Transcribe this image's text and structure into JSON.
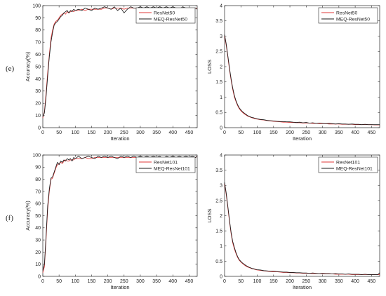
{
  "row_labels": [
    "(e)",
    "(f)"
  ],
  "chart_data": [
    {
      "type": "line",
      "xlabel": "Iteration",
      "ylabel": "Accuracy(%)",
      "xlim": [
        0,
        475
      ],
      "ylim": [
        0,
        100
      ],
      "xticks": [
        0,
        50,
        100,
        150,
        200,
        250,
        300,
        350,
        400,
        450
      ],
      "yticks": [
        0,
        10,
        20,
        30,
        40,
        50,
        60,
        70,
        80,
        90,
        100
      ],
      "grid": false,
      "legend": "top-right",
      "series": [
        {
          "name": "ResNet50",
          "color": "#e23a3a",
          "x": [
            0,
            5,
            10,
            15,
            20,
            25,
            30,
            35,
            40,
            45,
            50,
            55,
            60,
            65,
            70,
            75,
            80,
            85,
            90,
            95,
            100,
            110,
            120,
            130,
            140,
            150,
            160,
            170,
            180,
            190,
            200,
            210,
            220,
            230,
            240,
            250,
            260,
            270,
            280,
            290,
            300,
            310,
            320,
            330,
            340,
            350,
            360,
            370,
            380,
            390,
            400,
            410,
            420,
            430,
            440,
            450,
            460,
            470,
            475
          ],
          "y": [
            8,
            13,
            28,
            45,
            60,
            73,
            80,
            85,
            87,
            88,
            90,
            92,
            93,
            94,
            93,
            95,
            94,
            95,
            96,
            95,
            96,
            96,
            97,
            96,
            97,
            97,
            97,
            97,
            97,
            98,
            98,
            97,
            98,
            98,
            98,
            97,
            98,
            98,
            98,
            98,
            98,
            97,
            98,
            98,
            98,
            98,
            98,
            98,
            98,
            98,
            98,
            98,
            98,
            98,
            98,
            98,
            98,
            98,
            98
          ]
        },
        {
          "name": "MEQ-ResNet50",
          "color": "#1a1a1a",
          "x": [
            0,
            5,
            10,
            15,
            20,
            25,
            30,
            35,
            40,
            45,
            50,
            55,
            60,
            65,
            70,
            75,
            80,
            85,
            90,
            95,
            100,
            110,
            120,
            130,
            140,
            150,
            160,
            170,
            180,
            190,
            200,
            210,
            220,
            230,
            240,
            250,
            260,
            270,
            280,
            290,
            300,
            310,
            320,
            330,
            340,
            350,
            360,
            370,
            380,
            390,
            400,
            410,
            420,
            430,
            440,
            450,
            460,
            470,
            475
          ],
          "y": [
            9,
            12,
            25,
            42,
            58,
            70,
            78,
            84,
            86,
            87,
            89,
            91,
            92,
            94,
            95,
            96,
            94,
            96,
            95,
            97,
            96,
            97,
            96,
            98,
            97,
            96,
            98,
            97,
            98,
            99,
            98,
            97,
            99,
            96,
            98,
            94,
            97,
            99,
            98,
            98,
            99,
            98,
            99,
            98,
            99,
            98,
            99,
            98,
            99,
            98,
            99,
            98,
            97,
            99,
            98,
            98,
            98,
            98,
            97
          ]
        }
      ]
    },
    {
      "type": "line",
      "xlabel": "Iteration",
      "ylabel": "LOSS",
      "xlim": [
        0,
        475
      ],
      "ylim": [
        0,
        4
      ],
      "xticks": [
        0,
        50,
        100,
        150,
        200,
        250,
        300,
        350,
        400,
        450
      ],
      "yticks": [
        0,
        0.5,
        1,
        1.5,
        2,
        2.5,
        3,
        3.5,
        4
      ],
      "grid": false,
      "legend": "top-right",
      "series": [
        {
          "name": "ResNet50",
          "color": "#e23a3a",
          "x": [
            0,
            5,
            10,
            15,
            20,
            25,
            30,
            35,
            40,
            45,
            50,
            55,
            60,
            65,
            70,
            75,
            80,
            85,
            90,
            95,
            100,
            110,
            120,
            130,
            140,
            150,
            160,
            170,
            180,
            190,
            200,
            210,
            220,
            230,
            240,
            250,
            260,
            270,
            280,
            290,
            300,
            310,
            320,
            330,
            340,
            350,
            360,
            370,
            380,
            390,
            400,
            410,
            420,
            430,
            440,
            450,
            460,
            470,
            475
          ],
          "y": [
            3.0,
            2.7,
            2.3,
            1.9,
            1.55,
            1.25,
            1.0,
            0.85,
            0.72,
            0.62,
            0.55,
            0.5,
            0.45,
            0.42,
            0.38,
            0.36,
            0.34,
            0.32,
            0.3,
            0.29,
            0.28,
            0.26,
            0.25,
            0.23,
            0.22,
            0.21,
            0.2,
            0.19,
            0.18,
            0.18,
            0.17,
            0.17,
            0.16,
            0.16,
            0.15,
            0.15,
            0.15,
            0.14,
            0.14,
            0.13,
            0.13,
            0.13,
            0.12,
            0.12,
            0.12,
            0.12,
            0.11,
            0.11,
            0.11,
            0.11,
            0.1,
            0.1,
            0.1,
            0.1,
            0.1,
            0.1,
            0.09,
            0.09,
            0.09
          ]
        },
        {
          "name": "MEQ-ResNet50",
          "color": "#1a1a1a",
          "x": [
            0,
            5,
            10,
            15,
            20,
            25,
            30,
            35,
            40,
            45,
            50,
            55,
            60,
            65,
            70,
            75,
            80,
            85,
            90,
            95,
            100,
            110,
            120,
            130,
            140,
            150,
            160,
            170,
            180,
            190,
            200,
            210,
            220,
            230,
            240,
            250,
            260,
            270,
            280,
            290,
            300,
            310,
            320,
            330,
            340,
            350,
            360,
            370,
            380,
            390,
            400,
            410,
            420,
            430,
            440,
            450,
            460,
            470,
            475
          ],
          "y": [
            3.05,
            2.75,
            2.35,
            1.95,
            1.6,
            1.3,
            1.05,
            0.88,
            0.75,
            0.65,
            0.58,
            0.52,
            0.48,
            0.44,
            0.4,
            0.37,
            0.35,
            0.33,
            0.32,
            0.3,
            0.29,
            0.27,
            0.26,
            0.24,
            0.23,
            0.22,
            0.21,
            0.2,
            0.2,
            0.19,
            0.19,
            0.18,
            0.17,
            0.18,
            0.16,
            0.17,
            0.15,
            0.16,
            0.14,
            0.15,
            0.14,
            0.13,
            0.14,
            0.13,
            0.12,
            0.13,
            0.12,
            0.12,
            0.11,
            0.12,
            0.11,
            0.11,
            0.1,
            0.11,
            0.1,
            0.1,
            0.1,
            0.1,
            0.1
          ]
        }
      ]
    },
    {
      "type": "line",
      "xlabel": "Iteration",
      "ylabel": "Accuracy(%)",
      "xlim": [
        0,
        475
      ],
      "ylim": [
        0,
        100
      ],
      "xticks": [
        0,
        50,
        100,
        150,
        200,
        250,
        300,
        350,
        400,
        450
      ],
      "yticks": [
        0,
        10,
        20,
        30,
        40,
        50,
        60,
        70,
        80,
        90,
        100
      ],
      "grid": false,
      "legend": "top-right",
      "series": [
        {
          "name": "ResNet101",
          "color": "#e23a3a",
          "x": [
            0,
            5,
            10,
            15,
            20,
            25,
            30,
            35,
            40,
            45,
            50,
            55,
            60,
            65,
            70,
            75,
            80,
            85,
            90,
            95,
            100,
            110,
            120,
            130,
            140,
            150,
            160,
            170,
            180,
            190,
            200,
            210,
            220,
            230,
            240,
            250,
            260,
            270,
            280,
            290,
            300,
            310,
            320,
            330,
            340,
            350,
            360,
            370,
            380,
            390,
            400,
            410,
            420,
            430,
            440,
            450,
            460,
            470,
            475
          ],
          "y": [
            3,
            8,
            30,
            55,
            70,
            80,
            81,
            85,
            89,
            92,
            93,
            94,
            93,
            95,
            96,
            95,
            95,
            96,
            96,
            96,
            97,
            97,
            97,
            98,
            97,
            97,
            98,
            98,
            98,
            98,
            98,
            98,
            98,
            98,
            98,
            98,
            98,
            98,
            98,
            98,
            98,
            98,
            98,
            98,
            98,
            98,
            98,
            98,
            98,
            98,
            98,
            98,
            98,
            98,
            98,
            98,
            98,
            98,
            99
          ]
        },
        {
          "name": "MEQ-ResNet101",
          "color": "#1a1a1a",
          "x": [
            0,
            5,
            10,
            15,
            20,
            25,
            30,
            35,
            40,
            45,
            50,
            55,
            60,
            65,
            70,
            75,
            80,
            85,
            90,
            95,
            100,
            110,
            120,
            130,
            140,
            150,
            160,
            170,
            180,
            190,
            200,
            210,
            220,
            230,
            240,
            250,
            260,
            270,
            280,
            290,
            300,
            310,
            320,
            330,
            340,
            350,
            360,
            370,
            380,
            390,
            400,
            410,
            420,
            430,
            440,
            450,
            460,
            470,
            475
          ],
          "y": [
            5,
            10,
            33,
            58,
            72,
            81,
            82,
            86,
            90,
            94,
            92,
            95,
            94,
            96,
            95,
            97,
            96,
            97,
            95,
            98,
            97,
            99,
            97,
            98,
            99,
            98,
            97,
            99,
            98,
            99,
            98,
            99,
            98,
            97,
            99,
            98,
            99,
            98,
            99,
            98,
            99,
            98,
            99,
            98,
            99,
            98,
            99,
            97,
            99,
            98,
            99,
            98,
            99,
            98,
            99,
            98,
            99,
            98,
            99
          ]
        }
      ]
    },
    {
      "type": "line",
      "xlabel": "Iteration",
      "ylabel": "LOSS",
      "xlim": [
        0,
        475
      ],
      "ylim": [
        0,
        4
      ],
      "xticks": [
        0,
        50,
        100,
        150,
        200,
        250,
        300,
        350,
        400,
        450
      ],
      "yticks": [
        0,
        0.5,
        1,
        1.5,
        2,
        2.5,
        3,
        3.5,
        4
      ],
      "grid": false,
      "legend": "top-right",
      "series": [
        {
          "name": "ResNet101",
          "color": "#e23a3a",
          "x": [
            0,
            5,
            10,
            15,
            20,
            25,
            30,
            35,
            40,
            45,
            50,
            55,
            60,
            65,
            70,
            75,
            80,
            85,
            90,
            95,
            100,
            110,
            120,
            130,
            140,
            150,
            160,
            170,
            180,
            190,
            200,
            210,
            220,
            230,
            240,
            250,
            260,
            270,
            280,
            290,
            300,
            310,
            320,
            330,
            340,
            350,
            360,
            370,
            380,
            390,
            400,
            410,
            420,
            430,
            440,
            450,
            460,
            470,
            475
          ],
          "y": [
            3.05,
            2.7,
            2.25,
            1.8,
            1.4,
            1.1,
            0.9,
            0.75,
            0.62,
            0.53,
            0.47,
            0.42,
            0.38,
            0.34,
            0.31,
            0.29,
            0.27,
            0.25,
            0.24,
            0.22,
            0.21,
            0.2,
            0.18,
            0.17,
            0.16,
            0.15,
            0.15,
            0.14,
            0.13,
            0.13,
            0.12,
            0.12,
            0.11,
            0.11,
            0.1,
            0.1,
            0.1,
            0.09,
            0.09,
            0.09,
            0.08,
            0.08,
            0.08,
            0.08,
            0.07,
            0.07,
            0.07,
            0.07,
            0.07,
            0.06,
            0.06,
            0.06,
            0.06,
            0.06,
            0.06,
            0.06,
            0.06,
            0.06,
            0.06
          ]
        },
        {
          "name": "MEQ-ResNet101",
          "color": "#1a1a1a",
          "x": [
            0,
            5,
            10,
            15,
            20,
            25,
            30,
            35,
            40,
            45,
            50,
            55,
            60,
            65,
            70,
            75,
            80,
            85,
            90,
            95,
            100,
            110,
            120,
            130,
            140,
            150,
            160,
            170,
            180,
            190,
            200,
            210,
            220,
            230,
            240,
            250,
            260,
            270,
            280,
            290,
            300,
            310,
            320,
            330,
            340,
            350,
            360,
            370,
            380,
            390,
            400,
            410,
            420,
            430,
            440,
            450,
            460,
            470,
            475
          ],
          "y": [
            3.1,
            2.75,
            2.3,
            1.85,
            1.45,
            1.15,
            0.95,
            0.78,
            0.65,
            0.55,
            0.49,
            0.44,
            0.4,
            0.36,
            0.33,
            0.3,
            0.28,
            0.26,
            0.25,
            0.23,
            0.22,
            0.21,
            0.19,
            0.18,
            0.17,
            0.17,
            0.16,
            0.15,
            0.14,
            0.14,
            0.13,
            0.13,
            0.12,
            0.12,
            0.11,
            0.11,
            0.1,
            0.11,
            0.1,
            0.09,
            0.1,
            0.09,
            0.09,
            0.08,
            0.09,
            0.08,
            0.08,
            0.07,
            0.08,
            0.07,
            0.07,
            0.07,
            0.06,
            0.07,
            0.06,
            0.06,
            0.06,
            0.06,
            0.12
          ]
        }
      ]
    }
  ]
}
